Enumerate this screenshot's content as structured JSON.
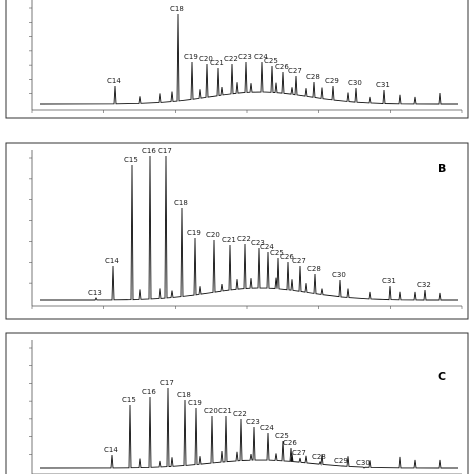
{
  "panels": [
    {
      "peaks": [
        "C14",
        "C18",
        "C19",
        "C20",
        "C21",
        "C22",
        "C23",
        "C24",
        "C25",
        "C26",
        "C27",
        "C28",
        "C29",
        "C30",
        "C31"
      ]
    },
    {
      "label": "B",
      "peaks": [
        "C13",
        "C14",
        "C15",
        "C16",
        "C17",
        "C18",
        "C19",
        "C20",
        "C21",
        "C22",
        "C23",
        "C24",
        "C25",
        "C26",
        "C27",
        "C28",
        "C30",
        "C31",
        "C32"
      ]
    },
    {
      "label": "C",
      "peaks": [
        "C14",
        "C15",
        "C16",
        "C17",
        "C18",
        "C19",
        "C20",
        "C21",
        "C22",
        "C23",
        "C24",
        "C25",
        "C26",
        "C27",
        "C28",
        "C29",
        "C30"
      ]
    }
  ]
}
